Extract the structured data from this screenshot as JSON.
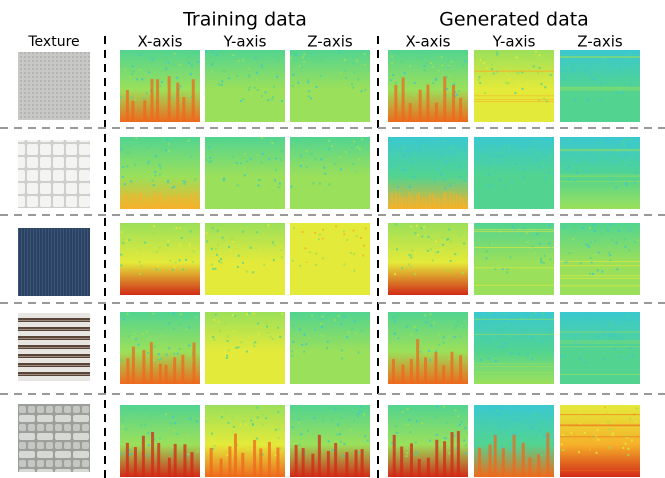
{
  "texture_label": "Texture",
  "groups": [
    {
      "title": "Training data",
      "columns": [
        "X-axis",
        "Y-axis",
        "Z-axis"
      ]
    },
    {
      "title": "Generated data",
      "columns": [
        "X-axis",
        "Y-axis",
        "Z-axis"
      ]
    }
  ]
}
